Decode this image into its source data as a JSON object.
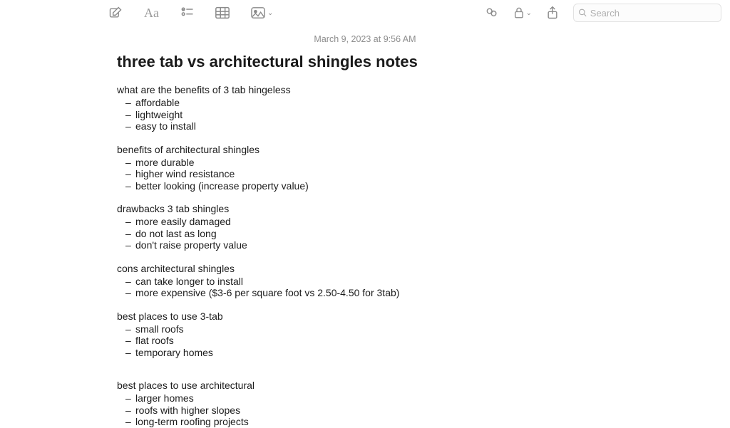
{
  "search": {
    "placeholder": "Search"
  },
  "date": "March 9, 2023 at 9:56 AM",
  "title": "three tab vs architectural shingles notes",
  "sections": [
    {
      "heading": "what are the benefits of 3 tab hingeless",
      "items": [
        "affordable",
        "lightweight",
        "easy to install"
      ]
    },
    {
      "heading": "benefits of architectural shingles",
      "items": [
        "more durable",
        "higher wind resistance",
        "better looking (increase property value)"
      ]
    },
    {
      "heading": "drawbacks 3 tab shingles",
      "items": [
        "more easily damaged",
        "do not last as long",
        "don't raise property value"
      ]
    },
    {
      "heading": "cons architectural shingles",
      "items": [
        "can take longer to install",
        "more expensive ($3-6 per square foot vs 2.50-4.50 for 3tab)"
      ]
    },
    {
      "heading": "best places to use 3-tab",
      "items": [
        "small roofs",
        "flat roofs",
        "temporary homes"
      ]
    },
    {
      "heading": "best places to use architectural",
      "items": [
        "larger homes",
        "roofs with higher slopes",
        "long-term roofing projects"
      ]
    }
  ],
  "colors": {
    "icon": "#888888",
    "text": "#1c1c1c",
    "muted": "#8d8d8d",
    "background": "#ffffff",
    "search_border": "#e2e2e2"
  }
}
